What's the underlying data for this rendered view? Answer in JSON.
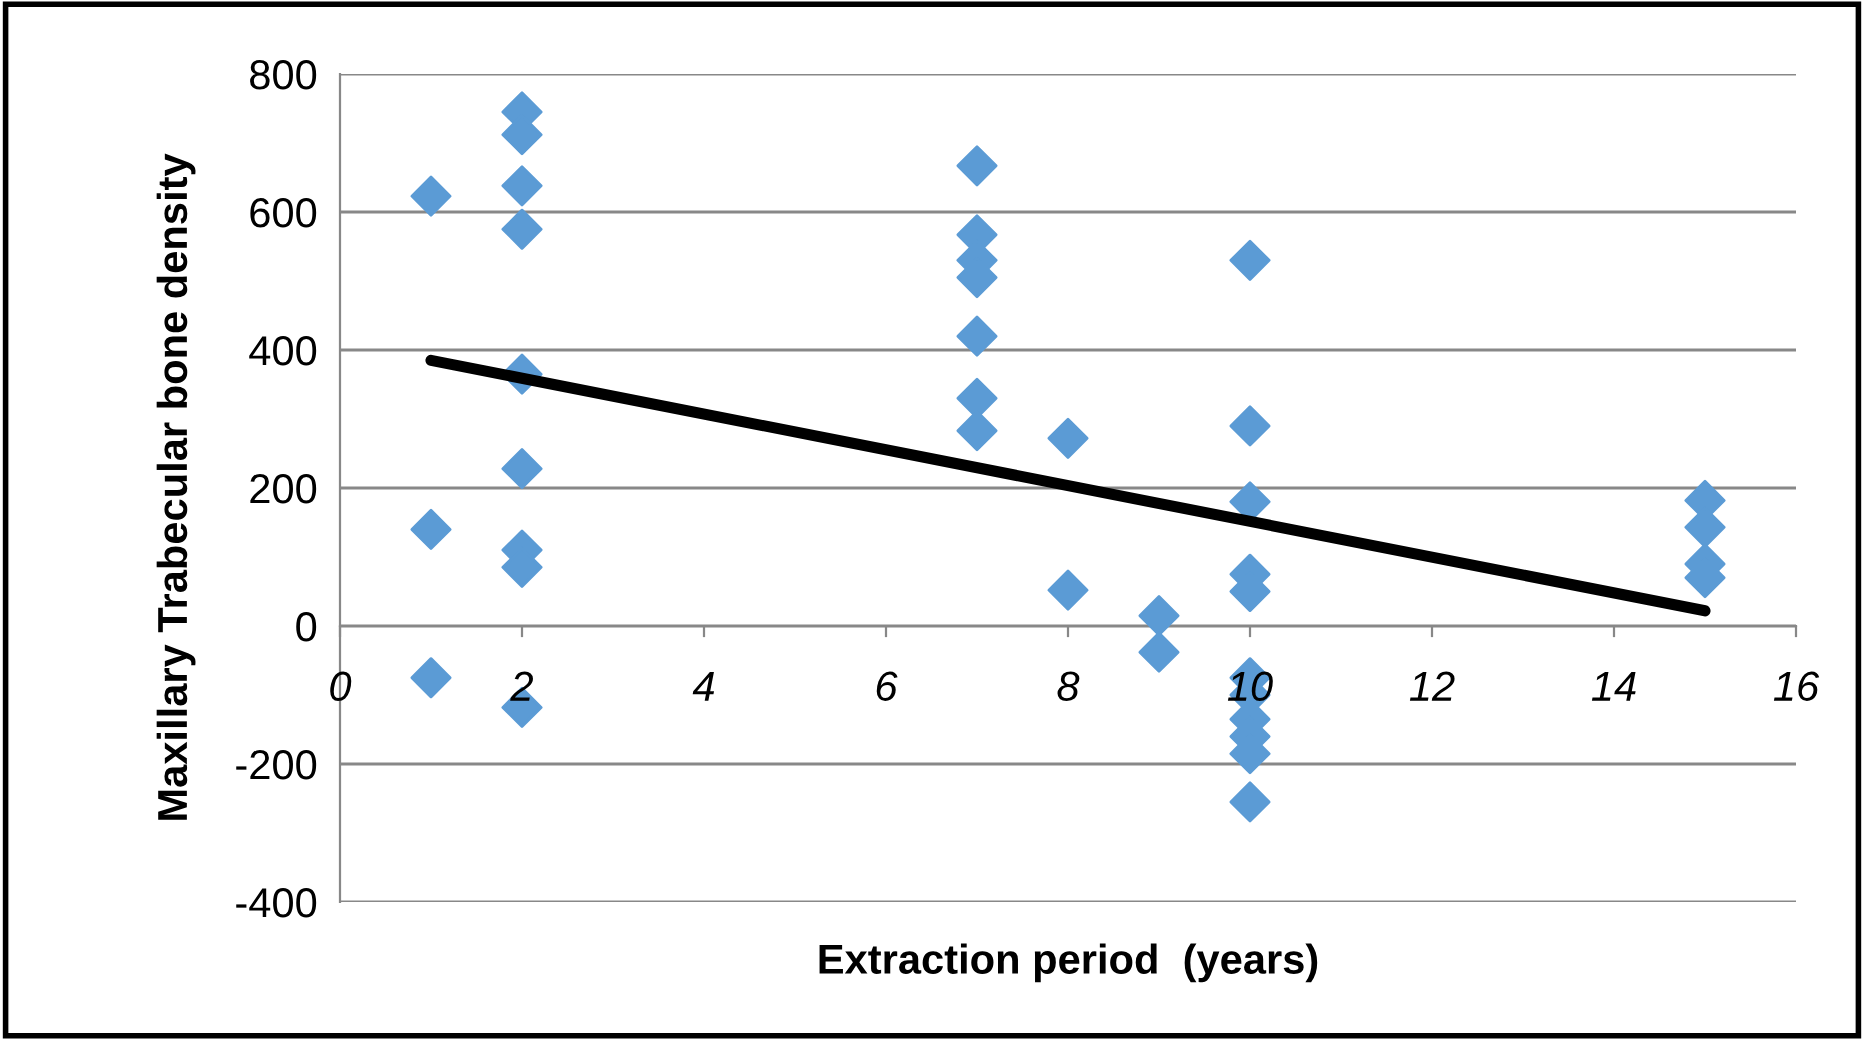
{
  "chart_data": {
    "type": "scatter",
    "xlabel": "Extraction period  (years)",
    "ylabel": "Maxillary Trabecular bone density",
    "xlim": [
      0,
      16
    ],
    "xticks": [
      0,
      2,
      4,
      6,
      8,
      10,
      12,
      14,
      16
    ],
    "ylim": [
      -400,
      800
    ],
    "yticks": [
      -400,
      -200,
      0,
      200,
      400,
      600,
      800
    ],
    "grid": "y",
    "legend": false,
    "series": [
      {
        "marker": "diamond",
        "color": "#5b9bd5",
        "x": [
          1,
          1,
          1,
          2,
          2,
          2,
          2,
          2,
          2,
          2,
          2,
          2,
          7,
          7,
          7,
          7,
          7,
          7,
          7,
          8,
          8,
          9,
          9,
          10,
          10,
          10,
          10,
          10,
          10,
          10,
          10,
          10,
          10,
          10,
          15,
          15,
          15,
          15
        ],
        "values": [
          623,
          140,
          -75,
          745,
          712,
          638,
          575,
          365,
          228,
          110,
          85,
          -118,
          667,
          567,
          530,
          505,
          420,
          330,
          283,
          272,
          52,
          15,
          -38,
          530,
          290,
          180,
          75,
          50,
          -75,
          -100,
          -135,
          -160,
          -185,
          -255,
          182,
          143,
          90,
          70
        ]
      },
      {
        "type": "line",
        "marker": "none",
        "color": "#000000",
        "x": [
          1,
          15
        ],
        "values": [
          385,
          22
        ]
      }
    ]
  }
}
